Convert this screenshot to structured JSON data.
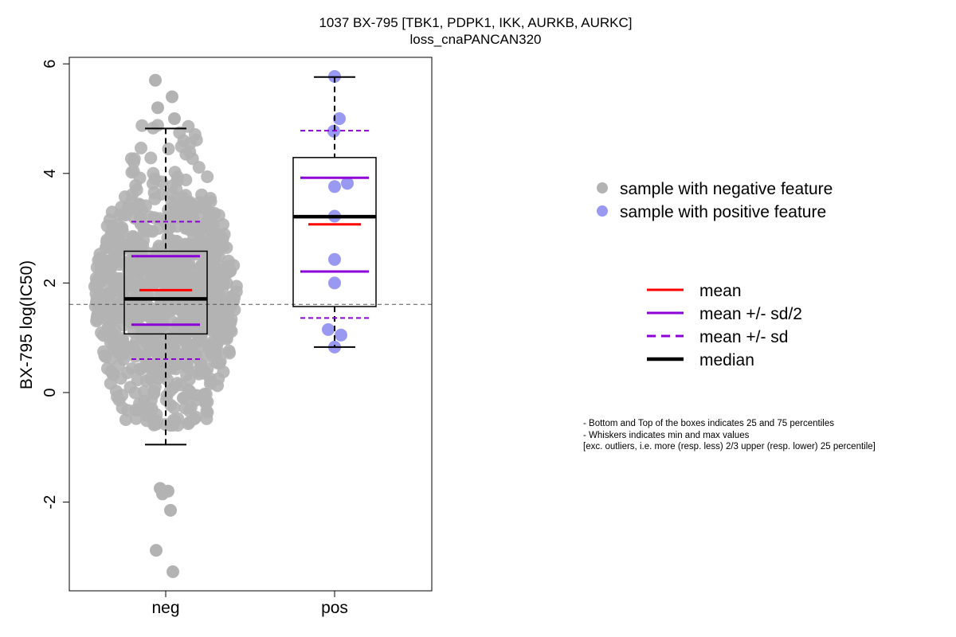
{
  "title": {
    "line1": "1037 BX-795 [TBK1, PDPK1, IKK, AURKB, AURKC]",
    "line2": "loss_cnaPANCAN320"
  },
  "colors": {
    "negative_points": "#b3b3b3",
    "positive_points": "#9999f2",
    "mean": "#ff0000",
    "sd": "#8b00d6",
    "median": "#000000",
    "reference_line": "#555555"
  },
  "legend_points": [
    {
      "label": "sample with negative feature",
      "color": "#b3b3b3"
    },
    {
      "label": "sample with positive feature",
      "color": "#9999f2"
    }
  ],
  "legend_lines": [
    {
      "label": "mean",
      "color": "#ff0000",
      "style": "solid"
    },
    {
      "label": "mean +/- sd/2",
      "color": "#8b00d6",
      "style": "solid"
    },
    {
      "label": "mean +/- sd",
      "color": "#8b00d6",
      "style": "dashed"
    },
    {
      "label": "median",
      "color": "#000000",
      "style": "thick"
    }
  ],
  "notes": [
    "- Bottom and Top of the boxes indicates 25 and 75 percentiles",
    "- Whiskers indicates min and max values",
    "[exc. outliers, i.e. more (resp. less) 2/3 upper (resp. lower) 25 percentile]"
  ],
  "chart_data": {
    "type": "box",
    "ylabel": "BX-795 log(IC50)",
    "xlabel": "",
    "categories": [
      "neg",
      "pos"
    ],
    "ylim": [
      -3.6,
      6.2
    ],
    "yticks": [
      -2,
      0,
      2,
      4,
      6
    ],
    "reference_line_y": 1.61,
    "grid": false,
    "legend_position": "right",
    "groups": [
      {
        "name": "neg",
        "q1": 1.07,
        "median": 1.71,
        "q3": 2.58,
        "whisker_low": -0.95,
        "whisker_high": 4.82,
        "mean": 1.87,
        "mean_minus_half_sd": 1.24,
        "mean_plus_half_sd": 2.49,
        "mean_minus_sd": 0.61,
        "mean_plus_sd": 3.12,
        "n_points": 900,
        "notable_points": [
          5.7,
          5.4,
          5.2,
          5.0,
          -1.75,
          -1.8,
          -1.85,
          -2.15,
          -2.88,
          -3.27
        ]
      },
      {
        "name": "pos",
        "q1": 1.57,
        "median": 3.21,
        "q3": 4.29,
        "whisker_low": 0.83,
        "whisker_high": 5.76,
        "mean": 3.07,
        "mean_minus_half_sd": 2.21,
        "mean_plus_half_sd": 3.92,
        "mean_minus_sd": 1.36,
        "mean_plus_sd": 4.78,
        "points": [
          5.77,
          5.0,
          4.77,
          3.82,
          3.76,
          3.22,
          2.43,
          2.0,
          1.15,
          1.05,
          0.83
        ]
      }
    ]
  }
}
